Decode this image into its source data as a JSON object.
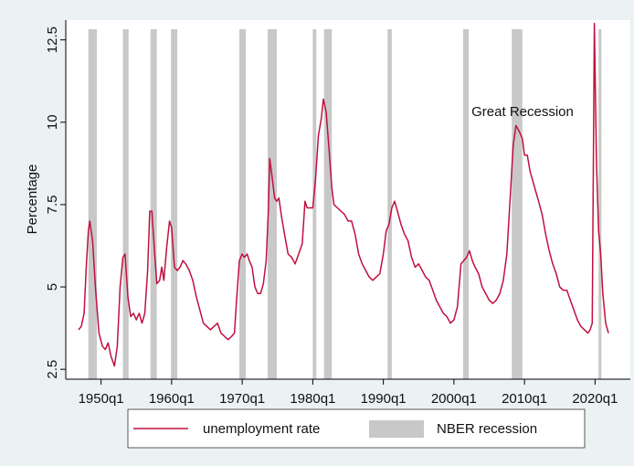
{
  "chart_data": {
    "type": "line",
    "y_label": "Percentage",
    "annotation": "Great Recession",
    "xlim": [
      1945,
      2025
    ],
    "ylim": [
      2.2,
      13.1
    ],
    "xticks": [
      {
        "value": 1950,
        "label": "1950q1"
      },
      {
        "value": 1960,
        "label": "1960q1"
      },
      {
        "value": 1970,
        "label": "1970q1"
      },
      {
        "value": 1980,
        "label": "1980q1"
      },
      {
        "value": 1990,
        "label": "1990q1"
      },
      {
        "value": 2000,
        "label": "2000q1"
      },
      {
        "value": 2010,
        "label": "2010q1"
      },
      {
        "value": 2020,
        "label": "2020q1"
      }
    ],
    "yticks": [
      2.5,
      5,
      7.5,
      10,
      12.5
    ],
    "legend": "bottom",
    "recessions": {
      "name": "NBER recession",
      "color": "#c8c8c8",
      "periods": [
        [
          1948.2,
          1949.4
        ],
        [
          1953.1,
          1953.9
        ],
        [
          1957.0,
          1957.9
        ],
        [
          1959.9,
          1960.8
        ],
        [
          1969.6,
          1970.5
        ],
        [
          1973.6,
          1974.9
        ],
        [
          1980.0,
          1980.5
        ],
        [
          1981.6,
          1982.7
        ],
        [
          1990.6,
          1991.2
        ],
        [
          2001.3,
          2002.1
        ],
        [
          2008.2,
          2009.7
        ],
        [
          2020.5,
          2020.9
        ]
      ]
    },
    "x": [
      1946.8,
      1947.2,
      1947.6,
      1947.9,
      1948.2,
      1948.4,
      1948.8,
      1949.2,
      1949.7,
      1950.2,
      1950.6,
      1951.0,
      1951.4,
      1951.9,
      1952.3,
      1952.7,
      1953.1,
      1953.4,
      1953.8,
      1954.2,
      1954.6,
      1955.0,
      1955.4,
      1955.8,
      1956.2,
      1956.6,
      1956.9,
      1957.2,
      1957.6,
      1957.9,
      1958.3,
      1958.6,
      1958.9,
      1959.3,
      1959.7,
      1960.0,
      1960.4,
      1960.8,
      1961.2,
      1961.6,
      1962.0,
      1962.5,
      1963.0,
      1963.5,
      1964.0,
      1964.5,
      1965.0,
      1965.5,
      1966.0,
      1966.5,
      1967.0,
      1967.5,
      1968.0,
      1968.5,
      1968.9,
      1969.2,
      1969.6,
      1970.0,
      1970.3,
      1970.7,
      1971.0,
      1971.4,
      1971.8,
      1972.2,
      1972.6,
      1973.0,
      1973.4,
      1973.7,
      1973.9,
      1974.2,
      1974.6,
      1974.9,
      1975.2,
      1975.6,
      1976.0,
      1976.5,
      1977.0,
      1977.5,
      1978.0,
      1978.5,
      1978.9,
      1979.2,
      1979.6,
      1980.0,
      1980.4,
      1980.8,
      1981.2,
      1981.5,
      1981.9,
      1982.3,
      1982.7,
      1983.0,
      1983.5,
      1984.0,
      1984.5,
      1985.0,
      1985.5,
      1986.0,
      1986.5,
      1987.0,
      1987.5,
      1988.0,
      1988.5,
      1989.0,
      1989.5,
      1990.0,
      1990.4,
      1990.8,
      1991.2,
      1991.6,
      1992.0,
      1992.5,
      1993.0,
      1993.5,
      1994.0,
      1994.5,
      1995.0,
      1995.5,
      1996.0,
      1996.5,
      1997.0,
      1997.5,
      1998.0,
      1998.5,
      1999.0,
      1999.5,
      2000.0,
      2000.5,
      2001.0,
      2001.4,
      2001.8,
      2002.2,
      2002.6,
      2003.0,
      2003.5,
      2004.0,
      2004.5,
      2005.0,
      2005.5,
      2006.0,
      2006.5,
      2007.0,
      2007.5,
      2008.0,
      2008.4,
      2008.8,
      2009.3,
      2009.7,
      2010.0,
      2010.4,
      2010.8,
      2011.2,
      2011.6,
      2012.0,
      2012.5,
      2013.0,
      2013.5,
      2014.0,
      2014.5,
      2015.0,
      2015.5,
      2016.0,
      2016.5,
      2017.0,
      2017.5,
      2018.0,
      2018.5,
      2019.0,
      2019.3,
      2019.6,
      2019.9,
      2020.2,
      2020.5,
      2020.8,
      2021.1,
      2021.5,
      2021.9
    ],
    "series": [
      {
        "name": "unemployment rate",
        "color": "#c0103f",
        "values": [
          3.7,
          3.8,
          4.2,
          5.6,
          6.7,
          7.0,
          6.4,
          5.0,
          3.6,
          3.2,
          3.1,
          3.3,
          2.9,
          2.6,
          3.2,
          5.0,
          5.9,
          6.0,
          4.7,
          4.1,
          4.2,
          4.0,
          4.2,
          3.9,
          4.2,
          5.5,
          7.3,
          7.3,
          6.0,
          5.1,
          5.2,
          5.6,
          5.2,
          6.2,
          7.0,
          6.8,
          5.6,
          5.5,
          5.6,
          5.8,
          5.7,
          5.5,
          5.2,
          4.7,
          4.3,
          3.9,
          3.8,
          3.7,
          3.8,
          3.9,
          3.6,
          3.5,
          3.4,
          3.5,
          3.6,
          4.6,
          5.8,
          6.0,
          5.9,
          6.0,
          5.8,
          5.6,
          5.0,
          4.8,
          4.8,
          5.1,
          5.8,
          7.3,
          8.9,
          8.4,
          7.7,
          7.6,
          7.7,
          7.1,
          6.6,
          6.0,
          5.9,
          5.7,
          6.0,
          6.3,
          7.6,
          7.4,
          7.4,
          7.4,
          8.3,
          9.6,
          10.1,
          10.7,
          10.3,
          9.2,
          8.0,
          7.5,
          7.4,
          7.3,
          7.2,
          7.0,
          7.0,
          6.6,
          6.0,
          5.7,
          5.5,
          5.3,
          5.2,
          5.3,
          5.4,
          6.0,
          6.7,
          6.9,
          7.4,
          7.6,
          7.3,
          6.9,
          6.6,
          6.4,
          5.9,
          5.6,
          5.7,
          5.5,
          5.3,
          5.2,
          4.9,
          4.6,
          4.4,
          4.2,
          4.1,
          3.9,
          4.0,
          4.4,
          5.7,
          5.8,
          5.9,
          6.1,
          5.8,
          5.6,
          5.4,
          5.0,
          4.8,
          4.6,
          4.5,
          4.6,
          4.8,
          5.2,
          6.0,
          7.8,
          9.3,
          9.9,
          9.7,
          9.5,
          9.0,
          9.0,
          8.5,
          8.2,
          7.9,
          7.6,
          7.2,
          6.6,
          6.1,
          5.7,
          5.4,
          5.0,
          4.9,
          4.9,
          4.6,
          4.3,
          4.0,
          3.8,
          3.7,
          3.6,
          3.7,
          3.9,
          13.0,
          8.8,
          6.7,
          6.0,
          4.8,
          3.9,
          3.6
        ]
      }
    ]
  }
}
